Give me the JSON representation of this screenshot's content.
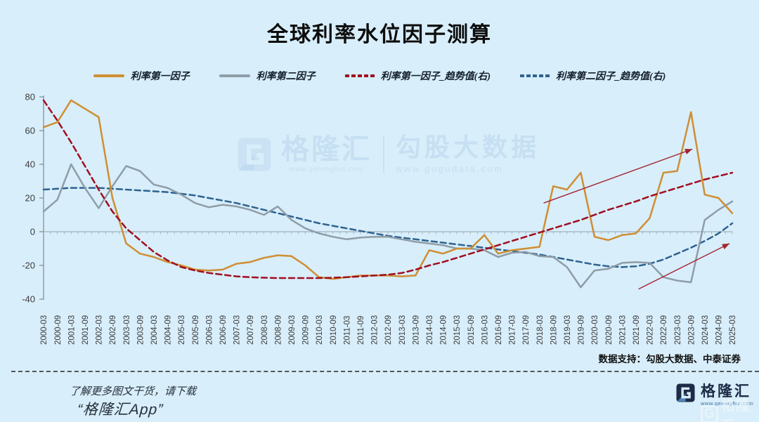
{
  "title": "全球利率水位因子测算",
  "chart_data": {
    "type": "line",
    "title": "全球利率水位因子测算",
    "xlabel": "",
    "ylabel": "",
    "ylim": [
      -40,
      80
    ],
    "y_ticks": [
      80,
      60,
      40,
      20,
      0,
      -20,
      -40
    ],
    "grid": "none",
    "legend_position": "top",
    "x_labels": [
      "2000-03",
      "2000-09",
      "2001-03",
      "2001-09",
      "2002-03",
      "2002-09",
      "2003-03",
      "2003-09",
      "2004-03",
      "2004-09",
      "2005-03",
      "2005-09",
      "2006-03",
      "2006-09",
      "2007-03",
      "2007-09",
      "2008-03",
      "2008-09",
      "2009-03",
      "2009-09",
      "2010-03",
      "2010-09",
      "2011-03",
      "2011-09",
      "2012-03",
      "2012-09",
      "2013-03",
      "2013-09",
      "2014-03",
      "2014-09",
      "2015-03",
      "2015-09",
      "2016-03",
      "2016-09",
      "2017-03",
      "2017-09",
      "2018-03",
      "2018-09",
      "2019-03",
      "2019-09",
      "2020-03",
      "2020-09",
      "2021-03",
      "2021-09",
      "2022-03",
      "2022-09",
      "2023-03",
      "2023-09",
      "2024-03",
      "2024-09",
      "2025-03"
    ],
    "series": [
      {
        "name": "利率第一因子",
        "color": "#CF8E33",
        "style": "solid",
        "values": [
          62,
          65,
          78,
          73,
          68,
          20,
          -7,
          -13,
          -15,
          -18,
          -20,
          -22.5,
          -23,
          -22.5,
          -19,
          -18,
          -15.5,
          -14,
          -14.5,
          -20,
          -27,
          -28,
          -27,
          -26,
          -26,
          -26,
          -26.5,
          -26,
          -11,
          -13,
          -10,
          -10,
          -2,
          -13,
          -11,
          -10,
          -9,
          27,
          25,
          35,
          -3,
          -5,
          -2,
          -1,
          8,
          35,
          36,
          71,
          22,
          20,
          11
        ]
      },
      {
        "name": "利率第二因子",
        "color": "#8E9DA8",
        "style": "solid",
        "values": [
          12,
          19,
          40,
          26,
          14,
          27,
          39,
          36,
          28,
          26,
          22,
          17,
          14.5,
          16,
          15,
          13,
          10,
          15,
          7,
          2,
          -1,
          -3,
          -4.5,
          -3.5,
          -3,
          -3,
          -4.5,
          -6,
          -7,
          -8,
          -10,
          -10,
          -11,
          -15,
          -12.5,
          -12,
          -14.5,
          -15,
          -21,
          -33,
          -23,
          -22,
          -18.5,
          -18,
          -18.5,
          -27,
          -29,
          -30,
          7,
          13,
          18
        ]
      },
      {
        "name": "利率第一因子_趋势值(右)",
        "color": "#A00E20",
        "style": "dashed",
        "values": [
          78,
          66,
          53,
          39,
          25,
          12,
          2,
          -5,
          -12,
          -17,
          -21,
          -23,
          -24.5,
          -25.5,
          -26.5,
          -27,
          -27.3,
          -27.5,
          -27.5,
          -27.5,
          -27.5,
          -27.3,
          -27,
          -26.5,
          -26,
          -25.5,
          -24.5,
          -22.5,
          -20,
          -18,
          -15.5,
          -13,
          -10.5,
          -8,
          -5.5,
          -3,
          -0.5,
          2,
          4.5,
          7,
          10,
          13,
          15.5,
          18,
          21,
          23.5,
          26,
          28.5,
          31,
          33,
          35
        ]
      },
      {
        "name": "利率第二因子_趋势值(右)",
        "color": "#2E6290",
        "style": "dashed",
        "values": [
          25,
          25.5,
          26,
          26,
          26,
          25.5,
          25,
          24.5,
          24,
          23.5,
          22.5,
          21.5,
          20,
          18.5,
          17,
          15,
          13,
          11,
          9,
          7,
          5,
          3.5,
          2,
          0.5,
          -1,
          -2.5,
          -3.5,
          -4.5,
          -5.5,
          -6.5,
          -7.5,
          -8.5,
          -9.5,
          -10.5,
          -11.5,
          -12.5,
          -13.5,
          -15,
          -16.5,
          -18,
          -19.5,
          -20.5,
          -21,
          -20.5,
          -19,
          -16.5,
          -13,
          -9.5,
          -5.5,
          -1,
          5
        ]
      }
    ],
    "annotations": {
      "arrow_color": "#A2242F",
      "arrows": [
        {
          "from_step": 36.3,
          "from_value": 17,
          "to_step": 47.1,
          "to_value": 49
        },
        {
          "from_step": 43.2,
          "from_value": -34,
          "to_step": 49.8,
          "to_value": -7
        }
      ]
    }
  },
  "watermark": {
    "brand": "格隆汇",
    "brand_url": "www.gelonghui.com",
    "partner": "勾股大数据",
    "partner_url": "www.gogudata.com"
  },
  "footer": {
    "data_support": "数据支持：勾股大数据、中泰证券",
    "promo_line1": "了解更多图文干货，请下载",
    "promo_line2": "“格隆汇App”",
    "logo_text": "格隆汇",
    "logo_url": "www.gelonghui.com",
    "corner_watermark_g": "G",
    "corner_watermark_text": "格隆汇"
  }
}
